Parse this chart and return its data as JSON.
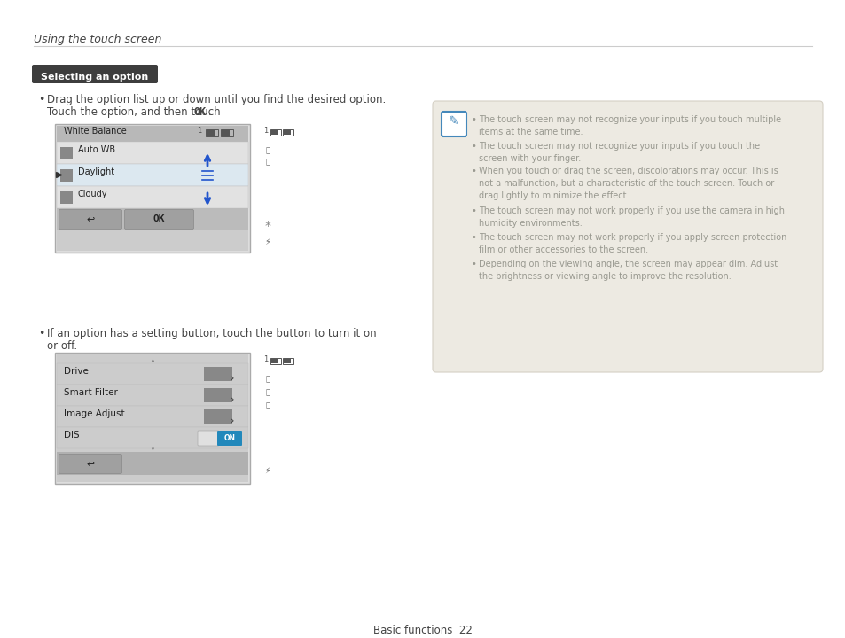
{
  "bg_color": "#ffffff",
  "header_text": "Using the touch screen",
  "section_title": "Selecting an option",
  "bullet1_line1": "Drag the option list up or down until you find the desired option.",
  "bullet1_line2a": "Touch the option, and then touch ",
  "bullet1_line2b": "OK",
  "bullet1_line2c": ".",
  "bullet2_line1": "If an option has a setting button, touch the button to turn it on",
  "bullet2_line2": "or off.",
  "note_bullets": [
    "The touch screen may not recognize your inputs if you touch multiple\nitems at the same time.",
    "The touch screen may not recognize your inputs if you touch the\nscreen with your finger.",
    "When you touch or drag the screen, discolorations may occur. This is\nnot a malfunction, but a characteristic of the touch screen. Touch or\ndrag lightly to minimize the effect.",
    "The touch screen may not work properly if you use the camera in high\nhumidity environments.",
    "The touch screen may not work properly if you apply screen protection\nfilm or other accessories to the screen.",
    "Depending on the viewing angle, the screen may appear dim. Adjust\nthe brightness or viewing angle to improve the resolution."
  ],
  "note_bg": "#edeae2",
  "note_text_color": "#999990",
  "footer_text": "Basic functions  22",
  "text_color": "#444444",
  "wb_rows": [
    "Auto WB",
    "Daylight",
    "Cloudy"
  ],
  "drive_rows": [
    "Drive",
    "Smart Filter",
    "Image Adjust",
    "DIS"
  ]
}
